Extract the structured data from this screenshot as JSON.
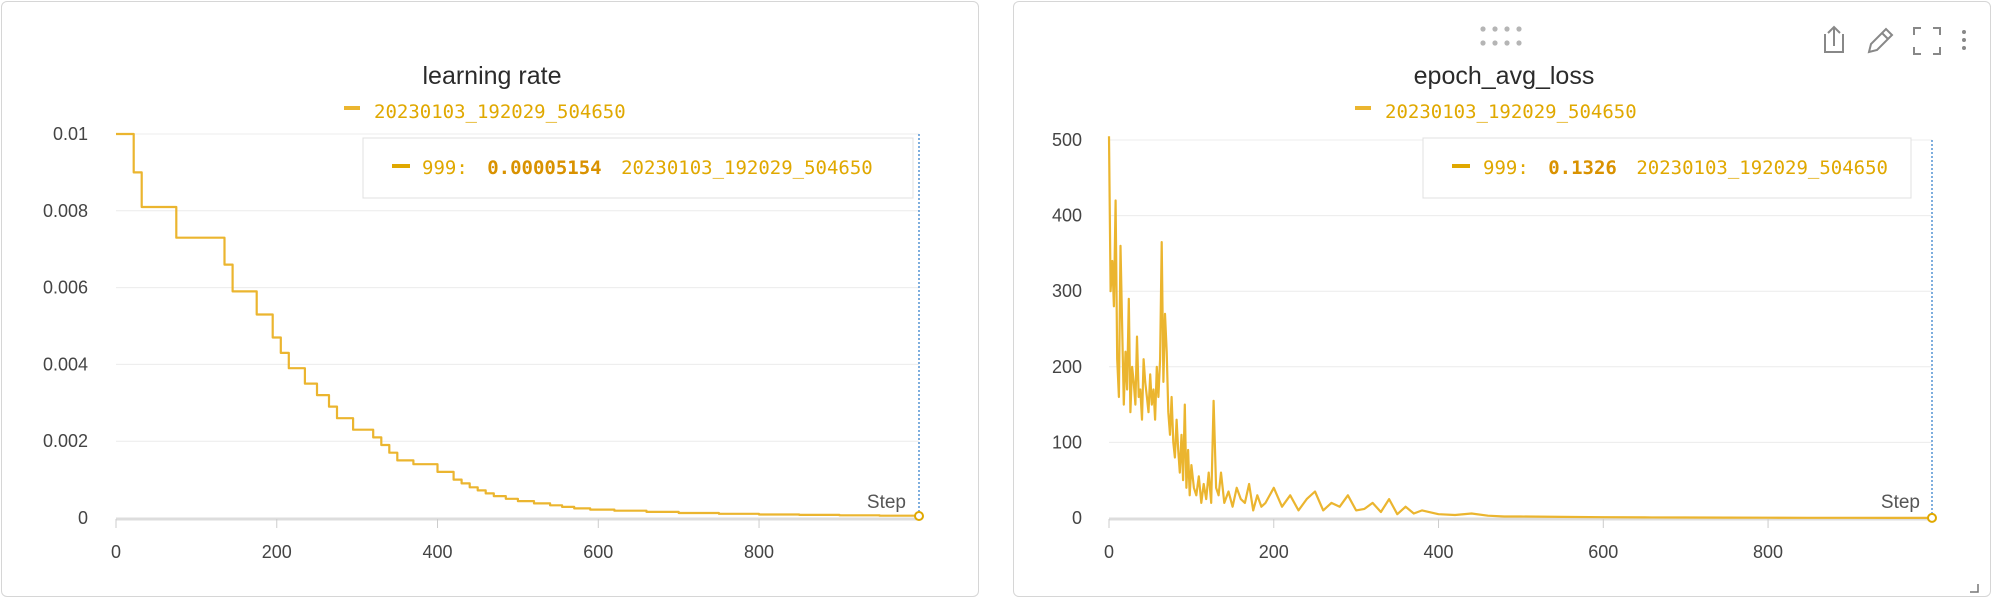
{
  "panels": [
    {
      "title": "learning rate",
      "legend": {
        "run": "20230103_192029_504650",
        "color": "#ebb52f"
      },
      "tooltip": {
        "step": "999:",
        "value": "0.00005154",
        "run": "20230103_192029_504650"
      },
      "step_label": "Step",
      "toolbar_visible": false
    },
    {
      "title": "epoch_avg_loss",
      "legend": {
        "run": "20230103_192029_504650",
        "color": "#ebb52f"
      },
      "tooltip": {
        "step": "999:",
        "value": "0.1326",
        "run": "20230103_192029_504650"
      },
      "step_label": "Step",
      "toolbar_visible": true,
      "toolbar": [
        "drag-handle-icon",
        "share-icon",
        "edit-icon",
        "fullscreen-icon",
        "more-icon"
      ]
    }
  ],
  "chart_data": [
    {
      "type": "line",
      "title": "learning rate",
      "xlabel": "Step",
      "ylabel": "",
      "xlim": [
        0,
        999
      ],
      "ylim": [
        0,
        0.01
      ],
      "xticks": [
        0,
        200,
        400,
        600,
        800
      ],
      "yticks": [
        0,
        0.002,
        0.004,
        0.006,
        0.008,
        0.01
      ],
      "ytick_labels": [
        "0",
        "0.002",
        "0.004",
        "0.006",
        "0.008",
        "0.01"
      ],
      "grid": true,
      "legend_position": "top",
      "series": [
        {
          "name": "20230103_192029_504650",
          "color": "#ebb52f",
          "step": true,
          "x": [
            0,
            22,
            32,
            75,
            135,
            145,
            175,
            195,
            205,
            215,
            235,
            250,
            265,
            275,
            295,
            320,
            330,
            340,
            350,
            370,
            400,
            420,
            430,
            440,
            450,
            460,
            470,
            485,
            500,
            520,
            540,
            555,
            570,
            590,
            620,
            660,
            700,
            750,
            800,
            850,
            900,
            950,
            999
          ],
          "values": [
            0.01,
            0.009,
            0.0081,
            0.0073,
            0.0066,
            0.0059,
            0.0053,
            0.0047,
            0.0043,
            0.0039,
            0.0035,
            0.0032,
            0.0029,
            0.0026,
            0.0023,
            0.0021,
            0.0019,
            0.0017,
            0.0015,
            0.0014,
            0.0012,
            0.001,
            0.0009,
            0.0008,
            0.00072,
            0.00064,
            0.00057,
            0.0005,
            0.00044,
            0.00038,
            0.00033,
            0.00029,
            0.00025,
            0.00022,
            0.00019,
            0.00016,
            0.00013,
            0.00011,
            9e-05,
            8e-05,
            7e-05,
            6e-05,
            5.154e-05
          ]
        }
      ]
    },
    {
      "type": "line",
      "title": "epoch_avg_loss",
      "xlabel": "Step",
      "ylabel": "",
      "xlim": [
        0,
        999
      ],
      "ylim": [
        0,
        500
      ],
      "xticks": [
        0,
        200,
        400,
        600,
        800
      ],
      "yticks": [
        0,
        100,
        200,
        300,
        400,
        500
      ],
      "ytick_labels": [
        "0",
        "100",
        "200",
        "300",
        "400",
        "500"
      ],
      "grid": true,
      "legend_position": "top",
      "series": [
        {
          "name": "20230103_192029_504650",
          "color": "#ebb52f",
          "step": false,
          "x": [
            0,
            2,
            4,
            6,
            8,
            10,
            12,
            14,
            16,
            18,
            20,
            22,
            24,
            26,
            28,
            30,
            32,
            34,
            36,
            38,
            40,
            42,
            44,
            46,
            48,
            50,
            52,
            54,
            56,
            58,
            60,
            62,
            64,
            66,
            68,
            70,
            72,
            74,
            76,
            78,
            80,
            82,
            84,
            86,
            88,
            90,
            92,
            94,
            96,
            98,
            100,
            103,
            106,
            109,
            112,
            115,
            118,
            121,
            124,
            127,
            130,
            133,
            136,
            140,
            145,
            150,
            155,
            160,
            165,
            170,
            175,
            180,
            185,
            190,
            200,
            210,
            220,
            230,
            240,
            250,
            260,
            270,
            280,
            290,
            300,
            310,
            320,
            330,
            340,
            350,
            360,
            370,
            380,
            400,
            420,
            440,
            460,
            480,
            500,
            550,
            600,
            650,
            700,
            750,
            800,
            850,
            900,
            950,
            999
          ],
          "values": [
            505,
            300,
            340,
            280,
            420,
            210,
            160,
            360,
            250,
            150,
            220,
            170,
            290,
            140,
            200,
            180,
            150,
            240,
            160,
            170,
            130,
            210,
            180,
            160,
            140,
            190,
            150,
            170,
            130,
            200,
            160,
            210,
            365,
            180,
            270,
            220,
            140,
            110,
            160,
            100,
            80,
            130,
            90,
            60,
            110,
            50,
            150,
            40,
            90,
            30,
            70,
            40,
            30,
            55,
            20,
            45,
            25,
            60,
            20,
            155,
            40,
            30,
            60,
            20,
            35,
            15,
            40,
            25,
            20,
            45,
            10,
            30,
            15,
            20,
            40,
            15,
            30,
            10,
            25,
            35,
            10,
            20,
            15,
            30,
            10,
            12,
            20,
            8,
            25,
            5,
            15,
            6,
            10,
            5,
            4,
            6,
            3,
            2,
            2,
            1.5,
            1,
            0.8,
            0.6,
            0.5,
            0.4,
            0.3,
            0.2,
            0.15,
            0.1326
          ]
        }
      ]
    }
  ]
}
